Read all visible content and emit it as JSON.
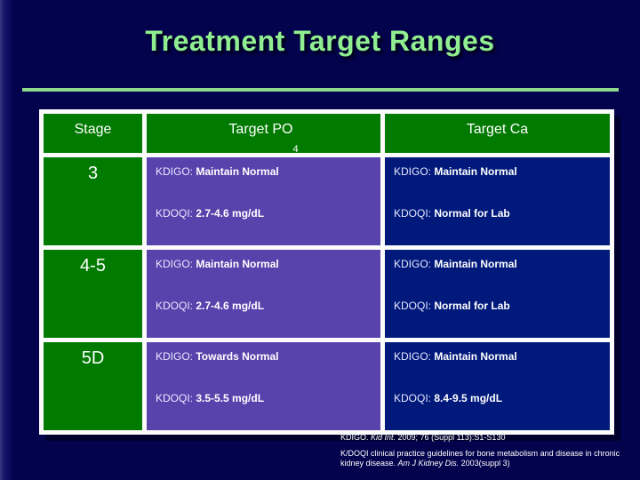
{
  "slide": {
    "title": "Treatment Target Ranges"
  },
  "table": {
    "headers": {
      "stage": "Stage",
      "po4_base": "Target PO",
      "po4_sub": "4",
      "ca": "Target Ca"
    },
    "rows": [
      {
        "stage": "3",
        "po4_kdigo_label": "KDIGO:",
        "po4_kdigo": "Maintain Normal",
        "po4_kdoqi_label": "KDOQI:",
        "po4_kdoqi": "2.7-4.6 mg/dL",
        "ca_kdigo_label": "KDIGO:",
        "ca_kdigo": "Maintain Normal",
        "ca_kdoqi_label": "KDOQI:",
        "ca_kdoqi": "Normal for Lab"
      },
      {
        "stage": "4-5",
        "po4_kdigo_label": "KDIGO:",
        "po4_kdigo": "Maintain Normal",
        "po4_kdoqi_label": "KDOQI:",
        "po4_kdoqi": "2.7-4.6 mg/dL",
        "ca_kdigo_label": "KDIGO:",
        "ca_kdigo": "Maintain Normal",
        "ca_kdoqi_label": "KDOQI:",
        "ca_kdoqi": "Normal for Lab"
      },
      {
        "stage": "5D",
        "po4_kdigo_label": "KDIGO:",
        "po4_kdigo": "Towards Normal",
        "po4_kdoqi_label": "KDOQI:",
        "po4_kdoqi": "3.5-5.5 mg/dL",
        "ca_kdigo_label": "KDIGO:",
        "ca_kdigo": "Maintain Normal",
        "ca_kdoqi_label": "KDOQI:",
        "ca_kdoqi": "8.4-9.5 mg/dL"
      }
    ]
  },
  "footer": {
    "ref1_pre": "KDIGO. ",
    "ref1_italic": "Kid Int.",
    "ref1_post": " 2009; 76 (Suppl 113):S1-S130",
    "ref2_pre": "K/DOQI clinical practice guidelines for bone metabolism and disease in chronic kidney disease. ",
    "ref2_italic": "Am J Kidney Dis.",
    "ref2_post": " 2003(suppl 3)"
  },
  "colors": {
    "background_navy": "#03024c",
    "title_green": "#90ee90",
    "rule_green": "#8fd98f",
    "header_green": "#017a01",
    "cell_purple": "#5843ac",
    "cell_blue": "#00197b",
    "table_border_white": "#fbfbfb",
    "text_white": "#ffffff"
  }
}
